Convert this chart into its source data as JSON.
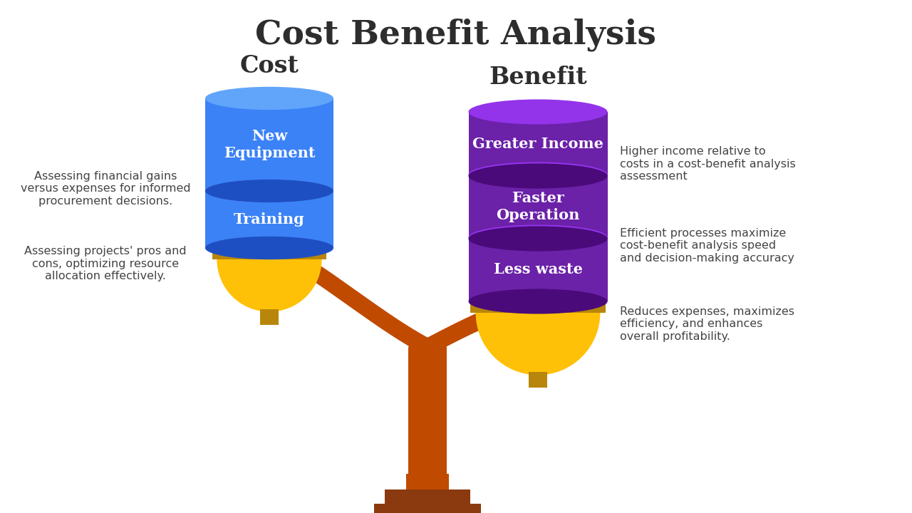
{
  "title": "Cost Benefit Analysis",
  "title_fontsize": 34,
  "title_color": "#2d2d2d",
  "bg_color": "#ffffff",
  "cost_label": "Cost",
  "benefit_label": "Benefit",
  "cost_items_bottom": "Training",
  "cost_items_top": "New\nEquipment",
  "benefit_items": [
    "Greater Income",
    "Faster\nOperation",
    "Less waste"
  ],
  "cost_color_main": "#3B82F6",
  "cost_color_dark": "#1E4FC2",
  "cost_color_top": "#60A5FA",
  "benefit_color_main": "#6B21A8",
  "benefit_color_dark": "#4A0A7A",
  "benefit_color_top": "#9333EA",
  "gold_strip": "#B8860B",
  "gold_bowl": "#FFC107",
  "scale_color": "#C04A00",
  "base_color": "#8B3A10",
  "left_texts": [
    "Assessing financial gains\nversus expenses for informed\nprocurement decisions.",
    "Assessing projects' pros and\ncons, optimizing resource\nallocation effectively."
  ],
  "right_texts": [
    "Higher income relative to\ncosts in a cost-benefit analysis\nassessment",
    "Efficient processes maximize\ncost-benefit analysis speed\nand decision-making accuracy",
    "Reduces expenses, maximizes\nefficiency, and enhances\noverall profitability."
  ],
  "text_color": "#444444",
  "label_color": "#2d2d2d",
  "item_fontsize": 15,
  "side_text_fontsize": 11.5,
  "label_fontsize": 24
}
